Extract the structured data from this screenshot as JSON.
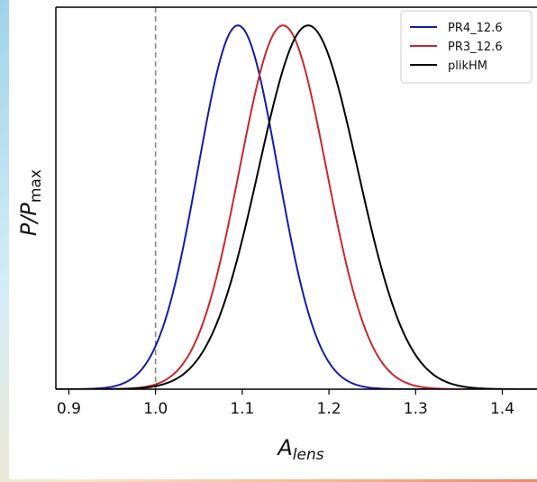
{
  "chart_data": {
    "type": "line",
    "xlabel_main": "A",
    "xlabel_sub": "lens",
    "ylabel_main": "P/P",
    "ylabel_sub": "max",
    "xlim": [
      0.885,
      1.44
    ],
    "ylim": [
      0,
      1.05
    ],
    "xticks": [
      "0.9",
      "1.0",
      "1.1",
      "1.2",
      "1.3",
      "1.4"
    ],
    "xtick_values": [
      0.9,
      1.0,
      1.1,
      1.2,
      1.3,
      1.4
    ],
    "reference_line": {
      "x": 1.0,
      "style": "dashed",
      "color": "#888888"
    },
    "legend_position": "top-right",
    "series": [
      {
        "name": "PR4_12.6",
        "color": "#1a1aa6",
        "mean": 1.095,
        "sigma": 0.046
      },
      {
        "name": "PR3_12.6",
        "color": "#c8282d",
        "mean": 1.147,
        "sigma": 0.05
      },
      {
        "name": "plikHM",
        "color": "#000000",
        "mean": 1.176,
        "sigma": 0.057
      }
    ]
  }
}
